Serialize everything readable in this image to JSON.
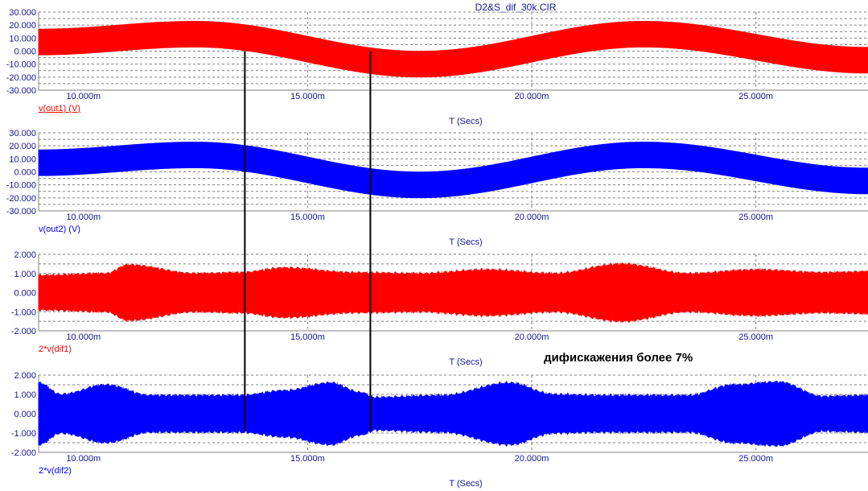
{
  "window_title": "D2&S_dif_30k.CIR",
  "annotation": "дифискажения более 7%",
  "colors": {
    "red": "#ff0000",
    "blue": "#0000ff",
    "grid": "#7f7f7f",
    "text": "#1414a0",
    "marker": "#000000"
  },
  "chart_data": [
    {
      "type": "line",
      "trace_label": "v(out1) (V)",
      "xlabel": "T (Secs)",
      "ylim": [
        -30,
        30
      ],
      "y_ticks": [
        "30.000",
        "20.000",
        "10.000",
        "0.000",
        "-10.000",
        "-20.000",
        "-30.000"
      ],
      "xlim": [
        0.009,
        0.0275
      ],
      "x_ticks": [
        "10.000m",
        "15.000m",
        "20.000m",
        "25.000m"
      ],
      "color": "#ff0000",
      "envelope_x": [
        0.009,
        0.0125,
        0.0175,
        0.0225,
        0.0275
      ],
      "envelope_center": [
        7,
        13,
        -10,
        13,
        -7
      ],
      "envelope_halfwidth": 10,
      "grid": true,
      "underline_label": true
    },
    {
      "type": "line",
      "trace_label": "v(out2) (V)",
      "xlabel": "T (Secs)",
      "ylim": [
        -30,
        30
      ],
      "y_ticks": [
        "30.000",
        "20.000",
        "10.000",
        "0.000",
        "-10.000",
        "-20.000",
        "-30.000"
      ],
      "xlim": [
        0.009,
        0.0275
      ],
      "x_ticks": [
        "10.000m",
        "15.000m",
        "20.000m",
        "25.000m"
      ],
      "color": "#0000ff",
      "envelope_x": [
        0.009,
        0.0125,
        0.0175,
        0.0225,
        0.0275
      ],
      "envelope_center": [
        7,
        13,
        -10,
        13,
        -7
      ],
      "envelope_halfwidth": 10,
      "grid": true,
      "underline_label": false
    },
    {
      "type": "line",
      "trace_label": "2*v(dif1)",
      "xlabel": "T (Secs)",
      "ylim": [
        -2,
        2
      ],
      "y_ticks": [
        "2.000",
        "1.000",
        "0.000",
        "-1.000",
        "-2.000"
      ],
      "xlim": [
        0.009,
        0.0275
      ],
      "x_ticks": [
        "10.000m",
        "15.000m",
        "20.000m",
        "25.000m"
      ],
      "color": "#ff0000",
      "amplitude_x": [
        0.009,
        0.0105,
        0.011,
        0.0125,
        0.0135,
        0.0145,
        0.016,
        0.0175,
        0.019,
        0.0205,
        0.022,
        0.0235,
        0.025,
        0.0265,
        0.0275
      ],
      "amplitude": [
        0.9,
        1.0,
        1.45,
        1.0,
        1.05,
        1.3,
        1.05,
        1.0,
        1.2,
        1.0,
        1.5,
        1.0,
        1.2,
        1.05,
        1.1
      ],
      "grid": true,
      "underline_label": false
    },
    {
      "type": "line",
      "trace_label": "2*v(dif2)",
      "xlabel": "T (Secs)",
      "ylim": [
        -2,
        2
      ],
      "y_ticks": [
        "2.000",
        "1.000",
        "0.000",
        "-1.000",
        "-2.000"
      ],
      "xlim": [
        0.009,
        0.0275
      ],
      "x_ticks": [
        "10.000m",
        "15.000m",
        "20.000m",
        "25.000m"
      ],
      "color": "#0000ff",
      "amplitude_x": [
        0.009,
        0.0095,
        0.0105,
        0.0115,
        0.0135,
        0.0145,
        0.0155,
        0.0162,
        0.0165,
        0.018,
        0.0195,
        0.0205,
        0.0215,
        0.0235,
        0.0245,
        0.0255,
        0.0265,
        0.0275
      ],
      "amplitude": [
        1.6,
        1.0,
        1.5,
        0.95,
        0.95,
        1.2,
        1.6,
        1.1,
        0.85,
        0.95,
        1.6,
        1.0,
        0.95,
        0.95,
        1.5,
        1.65,
        0.9,
        0.95
      ],
      "grid": true,
      "underline_label": false
    }
  ],
  "cursors": [
    {
      "x": 0.0136,
      "from_plot": 0,
      "to_plot": 3
    },
    {
      "x": 0.0164,
      "from_plot": 0,
      "to_plot": 3
    }
  ]
}
